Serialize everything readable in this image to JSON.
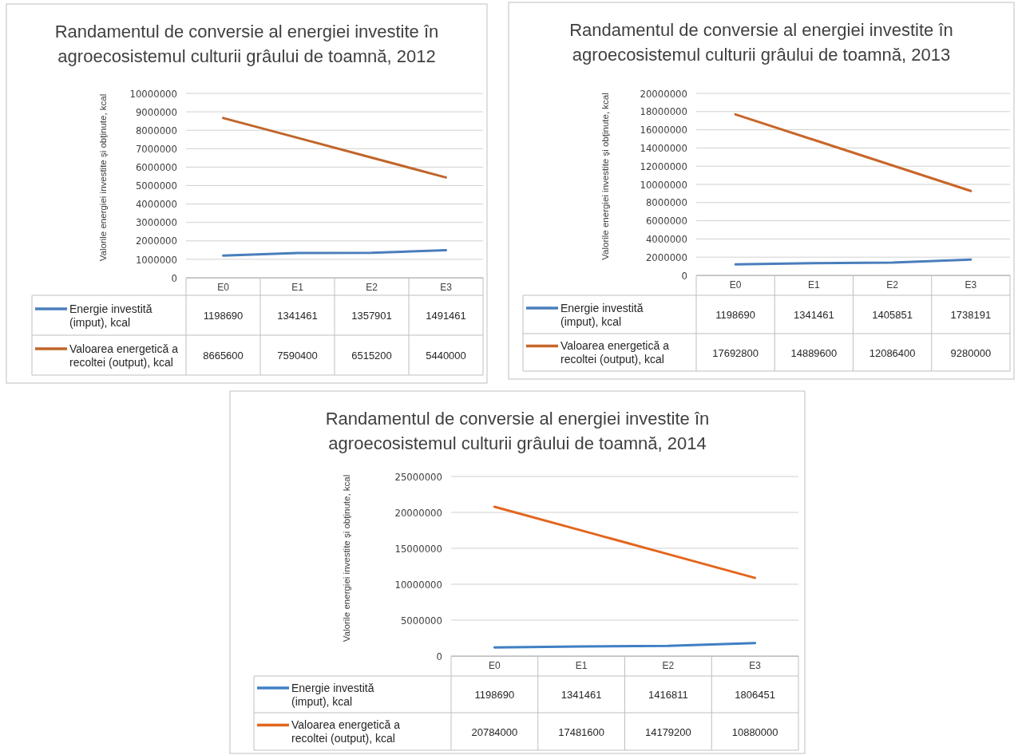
{
  "chart_data": [
    {
      "type": "line",
      "title": "Randamentul de conversie al energiei investite în agroecosistemul culturii grâului de toamnă, 2012",
      "ylabel": "Valorile energiei investite şi obţinute, kcal",
      "categories": [
        "E0",
        "E1",
        "E2",
        "E3"
      ],
      "series": [
        {
          "name": "Energie investită (imput), kcal",
          "color": "#4a7ebb",
          "values": [
            1198690,
            1341461,
            1357901,
            1491461
          ]
        },
        {
          "name": "Valoarea energetică a recoltei (output), kcal",
          "color": "#c0652a",
          "values": [
            8665600,
            7590400,
            6515200,
            5440000
          ]
        }
      ],
      "ylim": [
        0,
        10000000
      ],
      "yticks": [
        0,
        1000000,
        2000000,
        3000000,
        4000000,
        5000000,
        6000000,
        7000000,
        8000000,
        9000000,
        10000000
      ],
      "grid": "y",
      "legend": "bottom",
      "data_labels": true
    },
    {
      "type": "line",
      "title": "Randamentul de conversie al energiei investite în agroecosistemul culturii grâului de toamnă, 2013",
      "ylabel": "Valorile energiei investite şi obţinute, kcal",
      "categories": [
        "E0",
        "E1",
        "E2",
        "E3"
      ],
      "series": [
        {
          "name": "Energie investită (imput), kcal",
          "color": "#4a7ebb",
          "values": [
            1198690,
            1341461,
            1405851,
            1738191
          ]
        },
        {
          "name": "Valoarea energetică a recoltei (output), kcal",
          "color": "#c8662a",
          "values": [
            17692800,
            14889600,
            12086400,
            9280000
          ]
        }
      ],
      "ylim": [
        0,
        20000000
      ],
      "yticks": [
        0,
        2000000,
        4000000,
        6000000,
        8000000,
        10000000,
        12000000,
        14000000,
        16000000,
        18000000,
        20000000
      ],
      "grid": "y",
      "legend": "bottom",
      "data_labels": true
    },
    {
      "type": "line",
      "title": "Randamentul de conversie al energiei investite în agroecosistemul culturii grâului de toamnă, 2014",
      "ylabel": "Valorile energiei investite şi obţinute, kcal",
      "categories": [
        "E0",
        "E1",
        "E2",
        "E3"
      ],
      "series": [
        {
          "name": "Energie investită (imput), kcal",
          "color": "#3f7fc4",
          "values": [
            1198690,
            1341461,
            1416811,
            1806451
          ]
        },
        {
          "name": "Valoarea energetică a recoltei (output), kcal",
          "color": "#e2661e",
          "values": [
            20784000,
            17481600,
            14179200,
            10880000
          ]
        }
      ],
      "ylim": [
        0,
        25000000
      ],
      "yticks": [
        0,
        5000000,
        10000000,
        15000000,
        20000000,
        25000000
      ],
      "grid": "y",
      "legend": "bottom",
      "data_labels": true
    }
  ]
}
